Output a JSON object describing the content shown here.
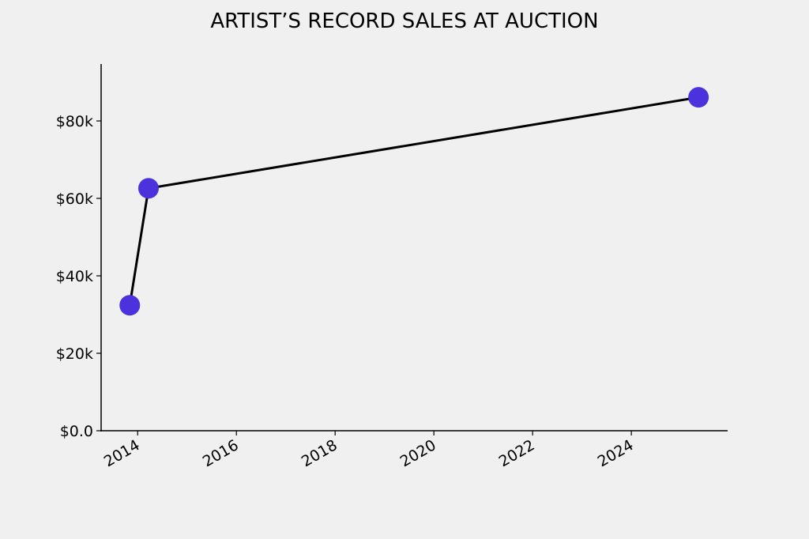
{
  "chart_data": {
    "type": "line",
    "title": "ARTIST’S RECORD SALES AT AUCTION",
    "x": [
      2013.84,
      2014.22,
      2025.36
    ],
    "series": [
      {
        "values": [
          32400,
          62600,
          86100
        ],
        "color": "#4b32dc",
        "line_color": "#000000"
      }
    ],
    "xlim": [
      2013.26,
      2025.95
    ],
    "xticks": [
      2014,
      2016,
      2018,
      2020,
      2022,
      2024
    ],
    "ylim": [
      0,
      94700
    ],
    "yticks": [
      {
        "value": 0,
        "label": "$0.0"
      },
      {
        "value": 20000,
        "label": "$20k"
      },
      {
        "value": 40000,
        "label": "$40k"
      },
      {
        "value": 60000,
        "label": "$60k"
      },
      {
        "value": 80000,
        "label": "$80k"
      }
    ],
    "grid": false
  }
}
